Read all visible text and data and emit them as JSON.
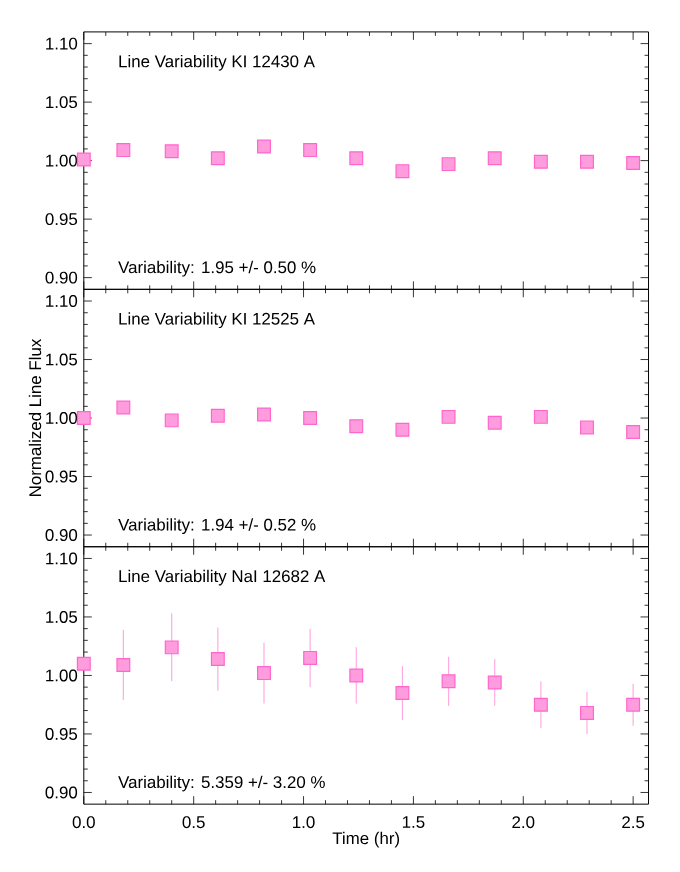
{
  "chart_data": [
    {
      "type": "scatter",
      "title": "Line Variability KI 12430 A",
      "annotations": [
        "Variability:  1.95 +/-  0.50 %"
      ],
      "marker": "square",
      "color": "#ff66cc",
      "tick_labels": "y",
      "x": [
        0,
        0.18,
        0.4,
        0.61,
        0.82,
        1.03,
        1.24,
        1.45,
        1.66,
        1.87,
        2.08,
        2.29,
        2.5
      ],
      "values": [
        1.001,
        1.009,
        1.008,
        1.002,
        1.012,
        1.009,
        1.002,
        0.991,
        0.997,
        1.002,
        0.999,
        0.999,
        0.998
      ],
      "xlim": [
        0,
        2.57
      ],
      "ylim": [
        0.89,
        1.11
      ],
      "xticks": [
        0,
        0.5,
        1,
        1.5,
        2,
        2.5
      ],
      "yticks": [
        {
          "value": 0.9,
          "label": "0.90"
        },
        {
          "value": 0.95,
          "label": "0.95"
        },
        {
          "value": 1.0,
          "label": "1.00"
        },
        {
          "value": 1.05,
          "label": "1.05"
        },
        {
          "value": 1.1,
          "label": "1.10"
        }
      ]
    },
    {
      "type": "scatter",
      "title": "Line Variability KI 12525 A",
      "annotations": [
        "Variability:  1.94 +/-  0.52 %"
      ],
      "ylabel": "Normalized Line Flux",
      "marker": "square",
      "color": "#ff66cc",
      "tick_labels": "y",
      "x": [
        0,
        0.18,
        0.4,
        0.61,
        0.82,
        1.03,
        1.24,
        1.45,
        1.66,
        1.87,
        2.08,
        2.29,
        2.5
      ],
      "values": [
        1.0,
        1.009,
        0.998,
        1.002,
        1.003,
        1.0,
        0.993,
        0.99,
        1.001,
        0.996,
        1.001,
        0.992,
        0.988
      ],
      "xlim": [
        0,
        2.57
      ],
      "ylim": [
        0.89,
        1.11
      ],
      "xticks": [
        0,
        0.5,
        1,
        1.5,
        2,
        2.5
      ],
      "yticks": [
        {
          "value": 0.9,
          "label": "0.90"
        },
        {
          "value": 0.95,
          "label": "0.95"
        },
        {
          "value": 1.0,
          "label": "1.00"
        },
        {
          "value": 1.05,
          "label": "1.05"
        },
        {
          "value": 1.1,
          "label": "1.10"
        }
      ]
    },
    {
      "type": "scatter",
      "title": "Line Variability NaI 12682 A",
      "annotations": [
        "Variability:  5.359 +/-  3.20 %"
      ],
      "xlabel": "Time (hr)",
      "marker": "square",
      "color": "#ff66cc",
      "x": [
        0,
        0.18,
        0.4,
        0.61,
        0.82,
        1.03,
        1.24,
        1.45,
        1.66,
        1.87,
        2.08,
        2.29,
        2.5
      ],
      "values": [
        1.01,
        1.009,
        1.024,
        1.014,
        1.002,
        1.015,
        1.0,
        0.985,
        0.995,
        0.994,
        0.975,
        0.968,
        0.975
      ],
      "errors": [
        null,
        0.03,
        0.029,
        0.027,
        0.026,
        0.025,
        0.024,
        0.023,
        0.021,
        0.02,
        0.02,
        0.018,
        0.018
      ],
      "xlim": [
        0,
        2.57
      ],
      "ylim": [
        0.89,
        1.11
      ],
      "xticks": [
        {
          "value": 0,
          "label": "0.0"
        },
        0.5,
        {
          "value": 1,
          "label": "1.0"
        },
        1.5,
        {
          "value": 2,
          "label": "2.0"
        },
        2.5
      ],
      "yticks": [
        {
          "value": 0.9,
          "label": "0.90"
        },
        {
          "value": 0.95,
          "label": "0.95"
        },
        {
          "value": 1.0,
          "label": "1.00"
        },
        {
          "value": 1.05,
          "label": "1.05"
        },
        {
          "value": 1.1,
          "label": "1.10"
        }
      ]
    }
  ]
}
